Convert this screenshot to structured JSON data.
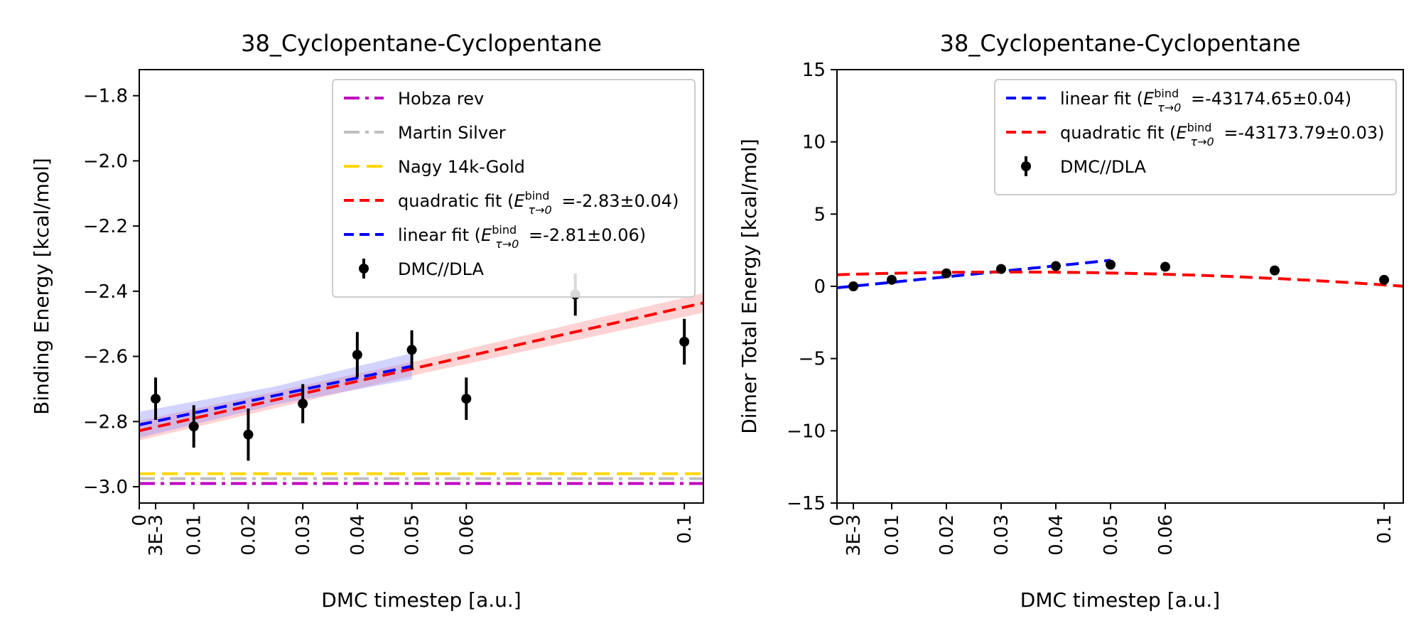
{
  "chart_data": [
    {
      "type": "scatter",
      "title": "38_Cyclopentane-Cyclopentane",
      "xlabel": "DMC timestep [a.u.]",
      "ylabel": "Binding Energy [kcal/mol]",
      "xlim": [
        0,
        0.1035
      ],
      "ylim": [
        -3.05,
        -1.72
      ],
      "grid": false,
      "legend_position": "top-right",
      "x_ticks": [
        {
          "value": 0,
          "label": "0"
        },
        {
          "value": 0.003,
          "label": "3E-3"
        },
        {
          "value": 0.01,
          "label": "0.01"
        },
        {
          "value": 0.02,
          "label": "0.02"
        },
        {
          "value": 0.03,
          "label": "0.03"
        },
        {
          "value": 0.04,
          "label": "0.04"
        },
        {
          "value": 0.05,
          "label": "0.05"
        },
        {
          "value": 0.06,
          "label": "0.06"
        },
        {
          "value": 0.1,
          "label": "0.1"
        }
      ],
      "y_ticks": [
        {
          "value": -3.0,
          "label": "−3.0"
        },
        {
          "value": -2.8,
          "label": "−2.8"
        },
        {
          "value": -2.6,
          "label": "−2.6"
        },
        {
          "value": -2.4,
          "label": "−2.4"
        },
        {
          "value": -2.2,
          "label": "−2.2"
        },
        {
          "value": -2.0,
          "label": "−2.0"
        },
        {
          "value": -1.8,
          "label": "−1.8"
        }
      ],
      "reference_lines": [
        {
          "name": "Hobza rev",
          "value": -2.99,
          "color": "#bf00bf",
          "dash": "dashdot"
        },
        {
          "name": "Martin Silver",
          "value": -2.975,
          "color": "#bfbfbf",
          "dash": "dashdot"
        },
        {
          "name": "Nagy 14k-Gold",
          "value": -2.96,
          "color": "#ffd700",
          "dash": "dashed"
        }
      ],
      "fits": [
        {
          "name_prefix": "quadratic fit (",
          "name_value": " =-2.83±0.04)",
          "color": "#ff0000",
          "band_color": "#ff8080",
          "kind": "quadratic",
          "coefficients": [
            -2.828,
            3.79,
            0
          ],
          "x_range": [
            0,
            0.1035
          ],
          "band_halfwidth": 0.03
        },
        {
          "name_prefix": "linear fit (",
          "name_value": " =-2.81±0.06)",
          "color": "#0000ff",
          "band_color": "#8080ff",
          "kind": "linear",
          "coefficients": [
            -2.81,
            3.6
          ],
          "x_range": [
            0,
            0.05
          ],
          "band_halfwidth": 0.04
        }
      ],
      "series": [
        {
          "name": "DMC//DLA",
          "color": "#000000",
          "points": [
            {
              "x": 0.003,
              "y": -2.73,
              "err": 0.065
            },
            {
              "x": 0.01,
              "y": -2.815,
              "err": 0.065
            },
            {
              "x": 0.02,
              "y": -2.84,
              "err": 0.08
            },
            {
              "x": 0.03,
              "y": -2.745,
              "err": 0.06
            },
            {
              "x": 0.04,
              "y": -2.595,
              "err": 0.07
            },
            {
              "x": 0.05,
              "y": -2.58,
              "err": 0.06
            },
            {
              "x": 0.06,
              "y": -2.73,
              "err": 0.065
            },
            {
              "x": 0.08,
              "y": -2.41,
              "err": 0.065
            },
            {
              "x": 0.1,
              "y": -2.555,
              "err": 0.07
            }
          ]
        }
      ],
      "legend_order": [
        "Hobza rev",
        "Martin Silver",
        "Nagy 14k-Gold",
        "quadratic fit",
        "linear fit",
        "DMC//DLA"
      ]
    },
    {
      "type": "scatter",
      "title": "38_Cyclopentane-Cyclopentane",
      "xlabel": "DMC timestep [a.u.]",
      "ylabel": "Dimer Total Energy [kcal/mol]",
      "xlim": [
        0,
        0.1035
      ],
      "ylim": [
        -15,
        15
      ],
      "grid": false,
      "legend_position": "top-right",
      "x_ticks": [
        {
          "value": 0,
          "label": "0"
        },
        {
          "value": 0.003,
          "label": "3E-3"
        },
        {
          "value": 0.01,
          "label": "0.01"
        },
        {
          "value": 0.02,
          "label": "0.02"
        },
        {
          "value": 0.03,
          "label": "0.03"
        },
        {
          "value": 0.04,
          "label": "0.04"
        },
        {
          "value": 0.05,
          "label": "0.05"
        },
        {
          "value": 0.06,
          "label": "0.06"
        },
        {
          "value": 0.1,
          "label": "0.1"
        }
      ],
      "y_ticks": [
        {
          "value": -15,
          "label": "−15"
        },
        {
          "value": -10,
          "label": "−10"
        },
        {
          "value": -5,
          "label": "−5"
        },
        {
          "value": 0,
          "label": "0"
        },
        {
          "value": 5,
          "label": "5"
        },
        {
          "value": 10,
          "label": "10"
        },
        {
          "value": 15,
          "label": "15"
        }
      ],
      "reference_lines": [],
      "fits": [
        {
          "name_prefix": "linear fit (",
          "name_value": " =-43174.65±0.04)",
          "color": "#0000ff",
          "kind": "linear",
          "coefficients": [
            -0.1,
            38
          ],
          "x_range": [
            0,
            0.05
          ],
          "band_halfwidth": 0
        },
        {
          "name_prefix": "quadratic fit (",
          "name_value": " =-43173.79±0.03)",
          "color": "#ff0000",
          "kind": "quadratic",
          "coefficients": [
            0.8,
            12,
            -190
          ],
          "x_range": [
            0,
            0.1035
          ],
          "band_halfwidth": 0
        }
      ],
      "series": [
        {
          "name": "DMC//DLA",
          "color": "#000000",
          "points": [
            {
              "x": 0.003,
              "y": 0.0,
              "err": 0.05
            },
            {
              "x": 0.01,
              "y": 0.45,
              "err": 0.05
            },
            {
              "x": 0.02,
              "y": 0.9,
              "err": 0.05
            },
            {
              "x": 0.03,
              "y": 1.2,
              "err": 0.05
            },
            {
              "x": 0.04,
              "y": 1.4,
              "err": 0.05
            },
            {
              "x": 0.05,
              "y": 1.5,
              "err": 0.05
            },
            {
              "x": 0.06,
              "y": 1.35,
              "err": 0.05
            },
            {
              "x": 0.08,
              "y": 1.1,
              "err": 0.05
            },
            {
              "x": 0.1,
              "y": 0.45,
              "err": 0.05
            }
          ]
        }
      ],
      "legend_order": [
        "linear fit",
        "quadratic fit",
        "DMC//DLA"
      ]
    }
  ],
  "legend_math": {
    "symbol": "E",
    "superscript": "bind",
    "subscript": "τ→0"
  }
}
